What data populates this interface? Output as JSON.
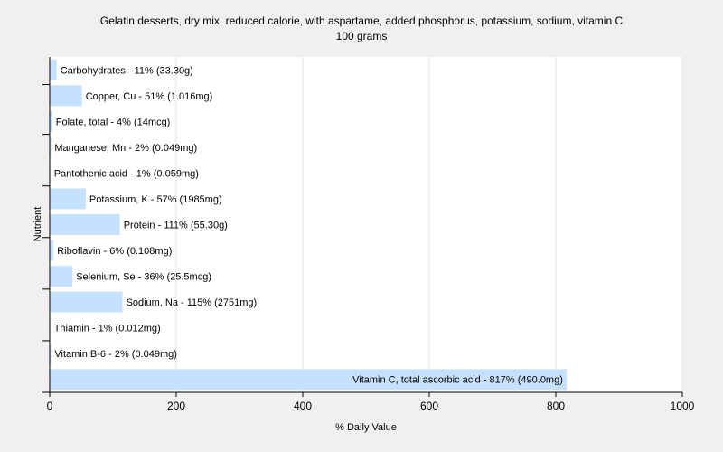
{
  "chart_data": {
    "type": "bar",
    "orientation": "horizontal",
    "title": "Gelatin desserts, dry mix, reduced calorie, with aspartame, added phosphorus, potassium, sodium, vitamin C",
    "subtitle": "100 grams",
    "xlabel": "% Daily Value",
    "ylabel": "Nutrient",
    "xlim": [
      0,
      1000
    ],
    "xticks": [
      "0",
      "200",
      "400",
      "600",
      "800",
      "1000"
    ],
    "grid": true,
    "bar_color": "#c6e0ff",
    "categories": [
      "Carbohydrates",
      "Copper, Cu",
      "Folate, total",
      "Manganese, Mn",
      "Pantothenic acid",
      "Potassium, K",
      "Protein",
      "Riboflavin",
      "Selenium, Se",
      "Sodium, Na",
      "Thiamin",
      "Vitamin B-6",
      "Vitamin C, total ascorbic acid"
    ],
    "values": [
      11,
      51,
      4,
      2,
      1,
      57,
      111,
      6,
      36,
      115,
      1,
      2,
      817
    ],
    "labels": [
      "Carbohydrates - 11% (33.30g)",
      "Copper, Cu - 51% (1.016mg)",
      "Folate, total - 4% (14mcg)",
      "Manganese, Mn - 2% (0.049mg)",
      "Pantothenic acid - 1% (0.059mg)",
      "Potassium, K - 57% (1985mg)",
      "Protein - 111% (55.30g)",
      "Riboflavin - 6% (0.108mg)",
      "Selenium, Se - 36% (25.5mcg)",
      "Sodium, Na - 115% (2751mg)",
      "Thiamin - 1% (0.012mg)",
      "Vitamin B-6 - 2% (0.049mg)",
      "Vitamin C, total ascorbic acid - 817% (490.0mg)"
    ]
  }
}
